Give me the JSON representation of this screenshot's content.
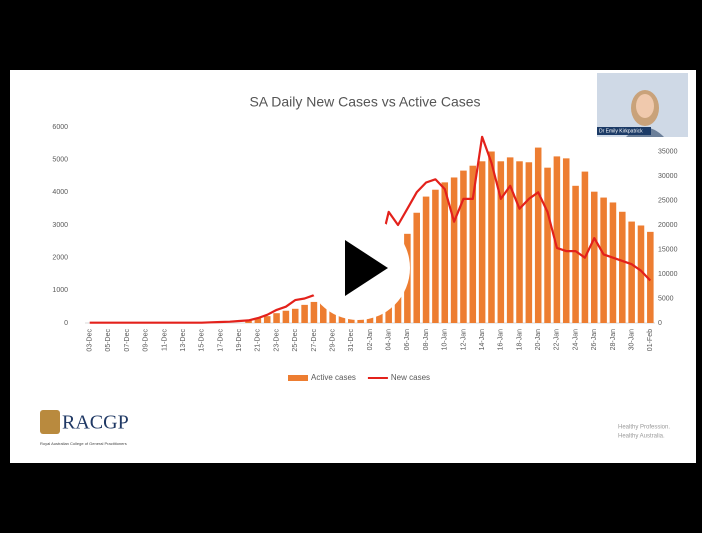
{
  "chart_data": {
    "type": "bar",
    "title": "SA Daily New Cases vs Active Cases",
    "categories": [
      "03-Dec",
      null,
      "05-Dec",
      null,
      "07-Dec",
      null,
      "09-Dec",
      null,
      "11-Dec",
      null,
      "13-Dec",
      null,
      "15-Dec",
      null,
      "17-Dec",
      null,
      "19-Dec",
      null,
      "21-Dec",
      null,
      "23-Dec",
      null,
      "25-Dec",
      null,
      "27-Dec",
      null,
      "29-Dec",
      null,
      "31-Dec",
      null,
      "02-Jan",
      null,
      "04-Jan",
      null,
      "06-Jan",
      null,
      "08-Jan",
      null,
      "10-Jan",
      null,
      "12-Jan",
      null,
      "14-Jan",
      null,
      "16-Jan",
      null,
      "18-Jan",
      null,
      "20-Jan",
      null,
      "22-Jan",
      null,
      "24-Jan",
      null,
      "26-Jan",
      null,
      "28-Jan",
      null,
      "30-Jan",
      null,
      "01-Feb"
    ],
    "series": [
      {
        "name": "Active cases",
        "type": "bar",
        "axis": "y2",
        "color": "#ed7d31",
        "values": [
          0,
          0,
          0,
          0,
          0,
          0,
          0,
          0,
          0,
          0,
          0,
          0,
          0,
          0,
          0,
          0,
          0,
          600,
          1000,
          1400,
          2000,
          2500,
          2900,
          3700,
          4300,
          5100,
          5900,
          6800,
          7400,
          8200,
          9200,
          10400,
          12500,
          15000,
          18200,
          22500,
          25800,
          27200,
          28700,
          29700,
          31100,
          32100,
          33000,
          35000,
          33000,
          33800,
          33000,
          32800,
          35800,
          31700,
          34000,
          33600,
          28000,
          30900,
          26800,
          25600,
          24600,
          22700,
          20700,
          19900,
          18600
        ]
      },
      {
        "name": "New cases",
        "type": "line",
        "color": "#e3211b",
        "values": [
          10,
          10,
          10,
          10,
          10,
          10,
          10,
          10,
          10,
          10,
          10,
          10,
          10,
          20,
          30,
          40,
          60,
          80,
          150,
          250,
          400,
          500,
          700,
          750,
          850,
          900,
          1000,
          1100,
          1300,
          1500,
          1800,
          2200,
          3400,
          3000,
          3500,
          4000,
          4300,
          4400,
          4100,
          3100,
          3800,
          3800,
          5700,
          4900,
          3800,
          4200,
          3500,
          3800,
          4000,
          3400,
          2300,
          2200,
          2200,
          2000,
          2600,
          2100,
          2000,
          1900,
          1800,
          1600,
          1300
        ]
      }
    ],
    "ylim": [
      0,
      6000
    ],
    "yticks": [
      0,
      1000,
      2000,
      3000,
      4000,
      5000,
      6000
    ],
    "y2lim": [
      0,
      40000
    ],
    "y2ticks": [
      0,
      5000,
      10000,
      15000,
      20000,
      25000,
      30000,
      35000
    ],
    "legend": "bottom",
    "grid": false
  },
  "presenter": "Dr Emily Kirkpatrick",
  "logo": {
    "name": "RACGP",
    "subtitle": "Royal Australian College of General Practitioners"
  },
  "tagline": [
    "Healthy Profession.",
    "Healthy Australia."
  ]
}
